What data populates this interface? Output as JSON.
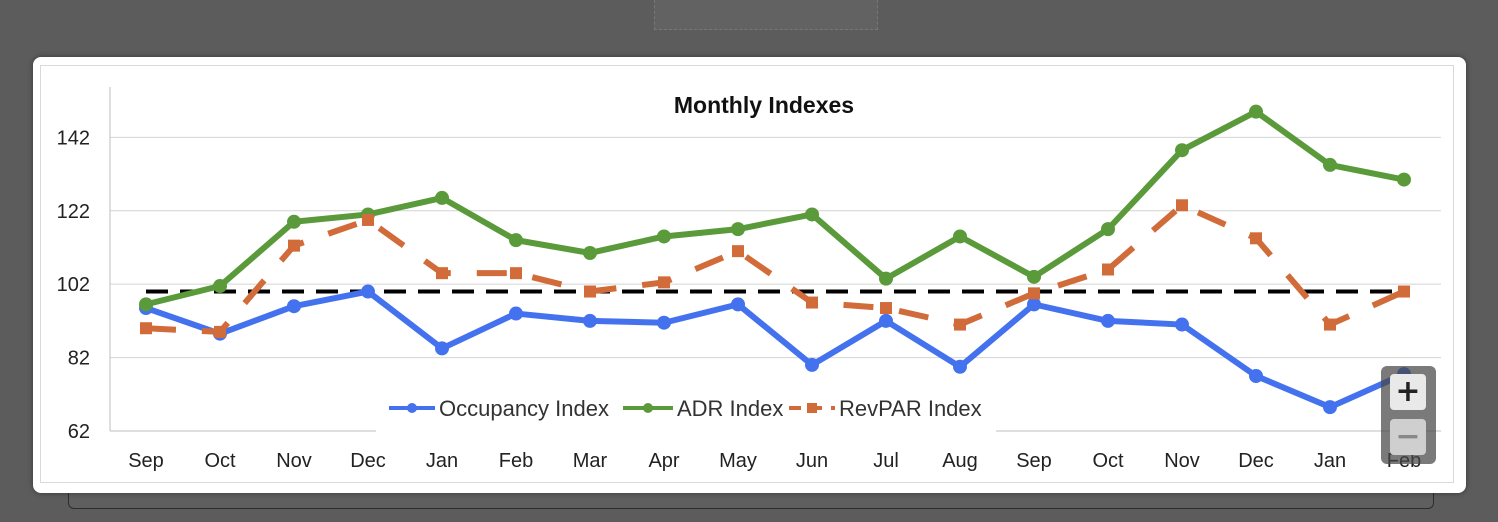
{
  "zoom_controls": {
    "zoom_in_label": "+",
    "zoom_out_label": "−"
  },
  "chart_data": {
    "type": "line",
    "title": "Monthly Indexes",
    "xlabel": "",
    "ylabel": "",
    "categories": [
      "Sep",
      "Oct",
      "Nov",
      "Dec",
      "Jan",
      "Feb",
      "Mar",
      "Apr",
      "May",
      "Jun",
      "Jul",
      "Aug",
      "Sep",
      "Oct",
      "Nov",
      "Dec",
      "Jan",
      "Feb"
    ],
    "yticks": [
      62,
      82,
      102,
      122,
      142
    ],
    "ylim": [
      62,
      153
    ],
    "grid": true,
    "legend_position": "bottom-center",
    "reference_line": {
      "value": 100,
      "style": "dashed",
      "color": "#000000"
    },
    "series": [
      {
        "name": "Occupancy Index",
        "color": "#4472ee",
        "dash": "solid",
        "values": [
          95.5,
          88.5,
          96,
          100,
          84.5,
          94,
          92,
          91.5,
          96.5,
          80,
          92,
          79.5,
          96.5,
          92,
          91,
          77,
          68.5,
          77.5
        ]
      },
      {
        "name": "ADR Index",
        "color": "#5a9a3a",
        "dash": "solid",
        "values": [
          96.5,
          101.5,
          119,
          121,
          125.5,
          114,
          110.5,
          115,
          117,
          121,
          103.5,
          115,
          104,
          117,
          138.5,
          149,
          134.5,
          130.5
        ]
      },
      {
        "name": "RevPAR Index",
        "color": "#d26b3a",
        "dash": "dashed",
        "values": [
          90,
          89,
          112.5,
          119.5,
          105,
          105,
          100,
          102.5,
          111,
          97,
          95.5,
          91,
          99.5,
          106,
          123.5,
          114.5,
          91,
          100
        ]
      }
    ]
  }
}
